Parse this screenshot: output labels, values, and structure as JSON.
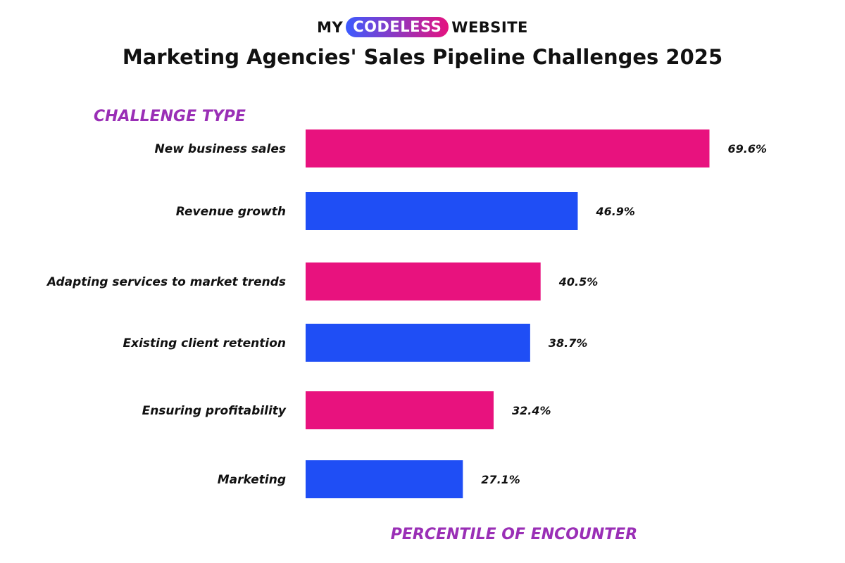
{
  "logo": {
    "part1": "MY",
    "part2": "CODELESS",
    "part3": "WEBSITE",
    "pill_gradient": [
      "#3b5bff",
      "#e5127f"
    ]
  },
  "colors": {
    "pink": "#e8127e",
    "blue": "#1f4ef5",
    "axis_title": "#9a2fb6",
    "text": "#111111"
  },
  "chart_data": {
    "type": "bar",
    "orientation": "horizontal",
    "title": "Marketing Agencies' Sales Pipeline Challenges 2025",
    "ylabel": "CHALLENGE  TYPE",
    "xlabel": "PERCENTILE OF ENCOUNTER",
    "categories": [
      "New business sales",
      "Revenue growth",
      "Adapting services to market trends",
      "Existing client retention",
      "Ensuring profitability",
      "Marketing"
    ],
    "values": [
      69.6,
      46.9,
      40.5,
      38.7,
      32.4,
      27.1
    ],
    "value_labels": [
      "69.6%",
      "46.9%",
      "40.5%",
      "38.7%",
      "32.4%",
      "27.1%"
    ],
    "bar_colors": [
      "#e8127e",
      "#1f4ef5",
      "#e8127e",
      "#1f4ef5",
      "#e8127e",
      "#1f4ef5"
    ],
    "xlim": [
      0,
      100
    ],
    "grid": false,
    "legend": "none"
  }
}
